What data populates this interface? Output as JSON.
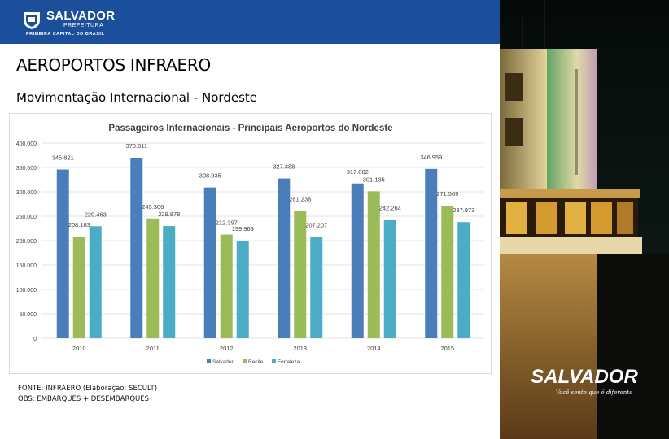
{
  "header": {
    "logo_name": "SALVADOR",
    "logo_sub": "PREFEITURA",
    "logo_tagline": "PRIMEIRA CAPITAL DO BRASIL"
  },
  "page": {
    "title": "AEROPORTOS INFRAERO",
    "subtitle": "Movimentação Internacional - Nordeste"
  },
  "chart_data": {
    "type": "bar",
    "title": "Passageiros Internacionais - Principais Aeroportos do Nordeste",
    "categories": [
      "2010",
      "2011",
      "2012",
      "2013",
      "2014",
      "2015"
    ],
    "series": [
      {
        "name": "Salvador",
        "color": "#4a7ebb",
        "values": [
          345821,
          370011,
          308935,
          327388,
          317082,
          346959
        ],
        "labels": [
          "345.821",
          "370.011",
          "308.935",
          "327.388",
          "317.082",
          "346.959"
        ]
      },
      {
        "name": "Recife",
        "color": "#9bbb59",
        "values": [
          208183,
          245306,
          212397,
          261238,
          301135,
          271569
        ],
        "labels": [
          "208.183",
          "245.306",
          "212.397",
          "261.238",
          "301.135",
          "271.569"
        ]
      },
      {
        "name": "Fortaleza",
        "color": "#4bacc6",
        "values": [
          229463,
          229878,
          199969,
          207207,
          242264,
          237973
        ],
        "labels": [
          "229.463",
          "229.878",
          "199.969",
          "207.207",
          "242.264",
          "237.973"
        ]
      }
    ],
    "yticks": [
      "0",
      "50.000",
      "100.000",
      "150.000",
      "200.000",
      "250.000",
      "300.000",
      "350.000",
      "400.000"
    ],
    "ylim": [
      0,
      400000
    ],
    "legend_position": "bottom",
    "grid": true
  },
  "notes": {
    "source": "FONTE: INFRAERO (Elaboração: SECULT)",
    "obs": "OBS: EMBARQUES + DESEMBARQUES"
  },
  "photo": {
    "brand": "SALVADOR",
    "slogan": "Você sente que é diferente"
  }
}
